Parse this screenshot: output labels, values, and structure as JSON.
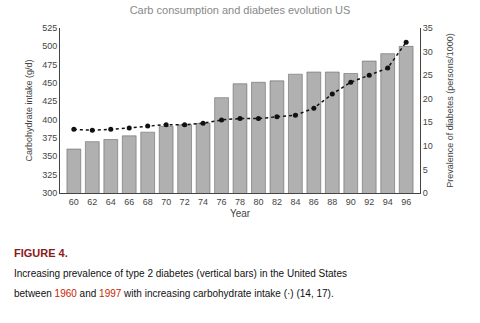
{
  "chart_data": {
    "type": "bar",
    "title": "Carb consumption and diabetes evolution US",
    "x_label": "Year",
    "y_label": "Carbohydrate intake (g/d)",
    "y2_label": "Prevalence of diabetes (persons/1000)",
    "x": [
      60,
      62,
      64,
      66,
      68,
      70,
      72,
      74,
      76,
      78,
      80,
      82,
      84,
      86,
      88,
      90,
      92,
      94,
      96
    ],
    "series": [
      {
        "type": "bar",
        "color": "#b0b0b0",
        "values": [
          360,
          370,
          373,
          378,
          383,
          391,
          393,
          395,
          430,
          449,
          451,
          453,
          462,
          465,
          465,
          463,
          480,
          490,
          500
        ]
      },
      {
        "type": "line",
        "axis": "y2",
        "color": "#111111",
        "line_style": "dotted",
        "marker": "dot",
        "values": [
          13.5,
          13.3,
          13.5,
          13.8,
          14.2,
          14.5,
          14.5,
          14.8,
          15.5,
          15.8,
          15.8,
          16.2,
          16.5,
          18.0,
          21.0,
          23.5,
          25.0,
          26.5,
          32.0
        ]
      }
    ],
    "xlim": [
      58.5,
      97.5
    ],
    "xticks": [
      60,
      62,
      64,
      66,
      68,
      70,
      72,
      74,
      76,
      78,
      80,
      82,
      84,
      86,
      88,
      90,
      92,
      94,
      96
    ],
    "ylim": [
      300,
      525
    ],
    "yticks": [
      300,
      325,
      350,
      375,
      400,
      425,
      450,
      475,
      500,
      525
    ],
    "y2lim": [
      0,
      35
    ],
    "y2ticks": [
      0,
      5,
      10,
      15,
      20,
      25,
      30,
      35
    ],
    "grid": false,
    "annotations": [
      {
        "parts": [
          {
            "text": "FIGURE 4.",
            "color": "#8b1a1a"
          }
        ]
      },
      {
        "parts": [
          {
            "text": "Increasing prevalence of type 2 diabetes (vertical bars) in the United States",
            "color": "#111111"
          }
        ]
      },
      {
        "parts": [
          {
            "text": "between ",
            "color": "#111111"
          },
          {
            "text": "1960",
            "color": "#cc2200"
          },
          {
            "text": " and ",
            "color": "#111111"
          },
          {
            "text": "1997",
            "color": "#cc2200"
          },
          {
            "text": " with increasing carbohydrate intake (·) (14, 17).",
            "color": "#111111"
          }
        ]
      }
    ]
  }
}
